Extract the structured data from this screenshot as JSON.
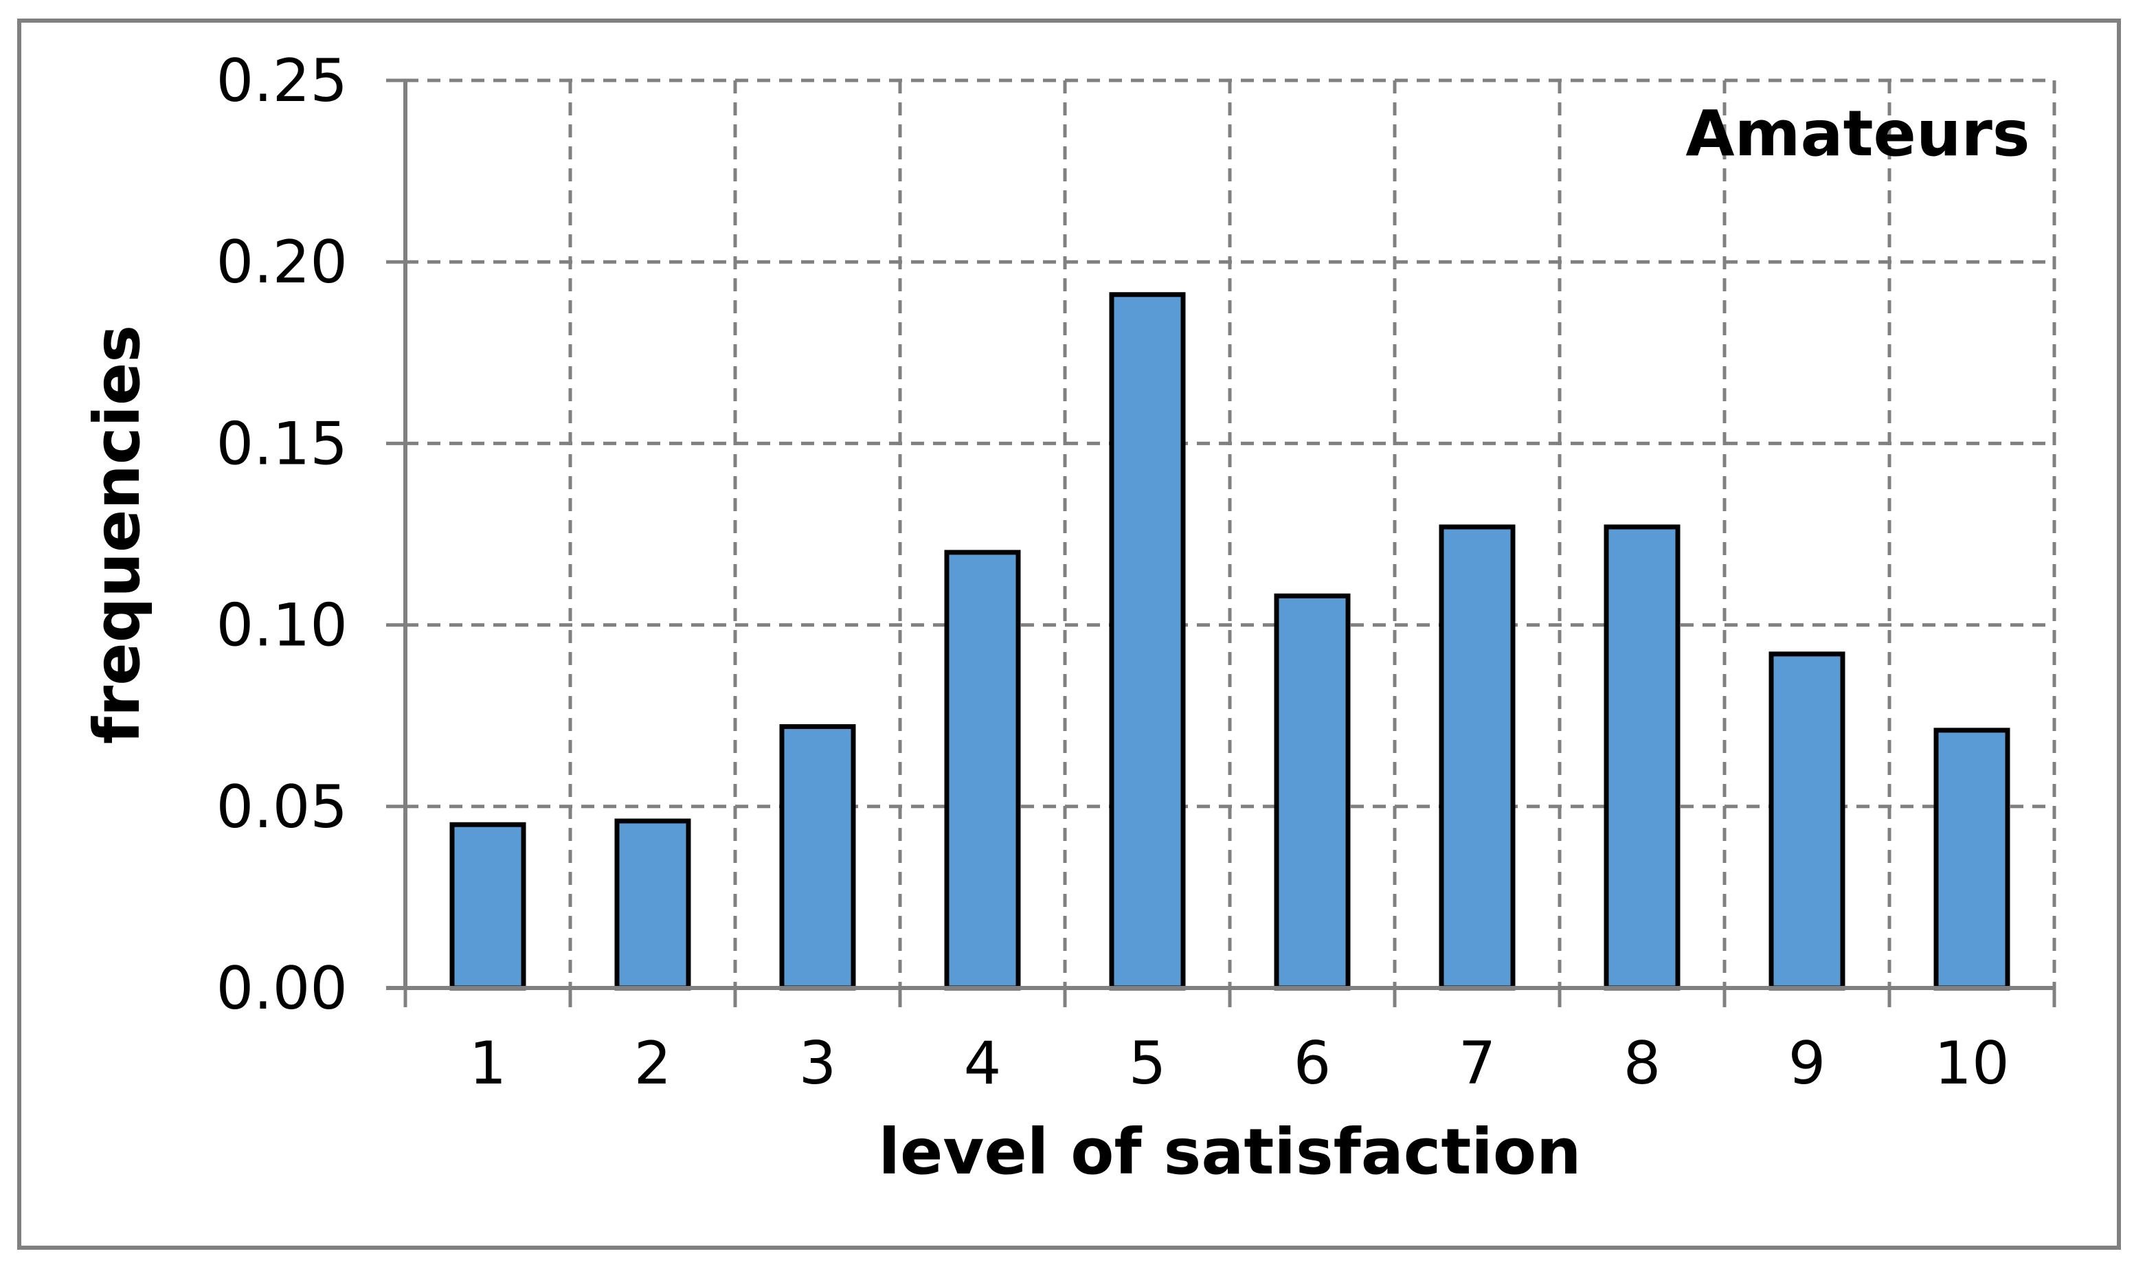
{
  "figure": {
    "background_color": "#ffffff",
    "border_color": "#808080"
  },
  "chart_data": {
    "type": "bar",
    "annotation": "Amateurs",
    "xlabel": "level of satisfaction",
    "ylabel": "frequencies",
    "categories": [
      "1",
      "2",
      "3",
      "4",
      "5",
      "6",
      "7",
      "8",
      "9",
      "10"
    ],
    "values": [
      0.045,
      0.046,
      0.072,
      0.12,
      0.191,
      0.108,
      0.127,
      0.127,
      0.092,
      0.071
    ],
    "y_tick_labels_top_to_bottom": [
      "0.25",
      "0.20",
      "0.15",
      "0.10",
      "0.05",
      "0.00"
    ],
    "ylim": [
      0,
      0.25
    ],
    "y_step": 0.05,
    "grid": "dashed",
    "legend": "none",
    "bar_color": "#5B9BD5",
    "bar_border_color": "#000000",
    "grid_color": "#808080",
    "axis_color": "#808080",
    "text_color": "#000000"
  }
}
